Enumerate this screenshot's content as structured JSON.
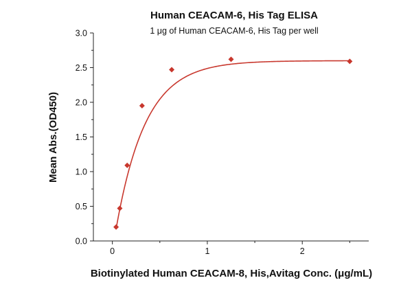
{
  "chart_data": {
    "type": "scatter",
    "title": "Human CEACAM-6, His Tag ELISA",
    "subtitle": "1 μg of Human CEACAM-6, His Tag per well",
    "xlabel": "Biotinylated Human CEACAM-8, His,Avitag Conc. (μg/mL)",
    "ylabel": "Mean Abs.(OD450)",
    "xlim": [
      -0.2,
      2.7
    ],
    "ylim": [
      0,
      3.0
    ],
    "x_ticks": [
      "0",
      "1",
      "2"
    ],
    "y_ticks": [
      "0.0",
      "0.5",
      "1.0",
      "1.5",
      "2.0",
      "2.5",
      "3.0"
    ],
    "grid": false,
    "series": [
      {
        "color": "#c8372d",
        "marker": "diamond",
        "points": [
          {
            "x": 0.039,
            "y": 0.2
          },
          {
            "x": 0.078,
            "y": 0.47
          },
          {
            "x": 0.156,
            "y": 1.09
          },
          {
            "x": 0.3125,
            "y": 1.95
          },
          {
            "x": 0.625,
            "y": 2.47
          },
          {
            "x": 1.25,
            "y": 2.62
          },
          {
            "x": 2.5,
            "y": 2.59
          }
        ],
        "fit_curve": true
      }
    ]
  }
}
